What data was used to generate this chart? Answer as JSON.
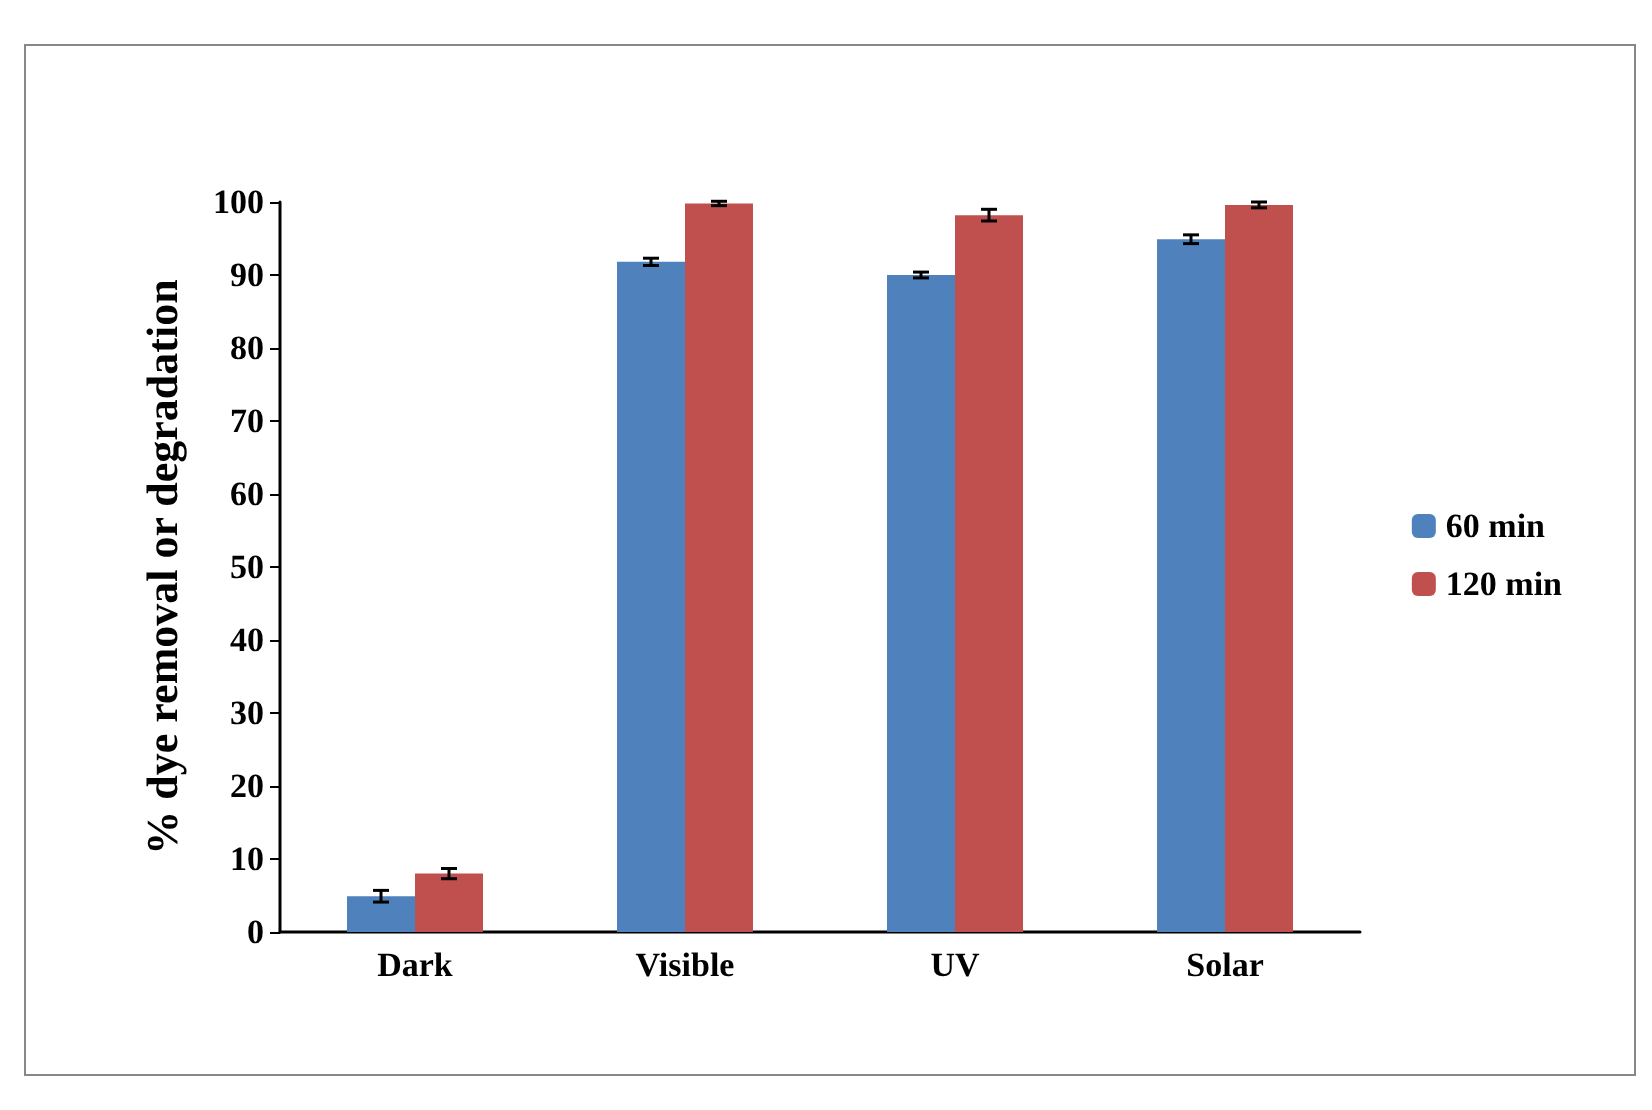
{
  "chart_data": {
    "type": "bar",
    "ylabel": "% dye removal or degradation",
    "categories": [
      "Dark",
      "Visible",
      "UV",
      "Solar"
    ],
    "series": [
      {
        "name": "60 min",
        "color": "#4f81bd",
        "values": [
          4.9,
          91.8,
          90.0,
          94.9
        ],
        "errors": [
          0.8,
          0.5,
          0.4,
          0.6
        ]
      },
      {
        "name": "120 min",
        "color": "#c0504d",
        "values": [
          8.0,
          99.8,
          98.2,
          99.6
        ],
        "errors": [
          0.7,
          0.3,
          0.8,
          0.4
        ]
      }
    ],
    "ylim": [
      0,
      100
    ],
    "yticks": [
      0,
      10,
      20,
      30,
      40,
      50,
      60,
      70,
      80,
      90,
      100
    ],
    "grid": false,
    "legend": "right"
  }
}
